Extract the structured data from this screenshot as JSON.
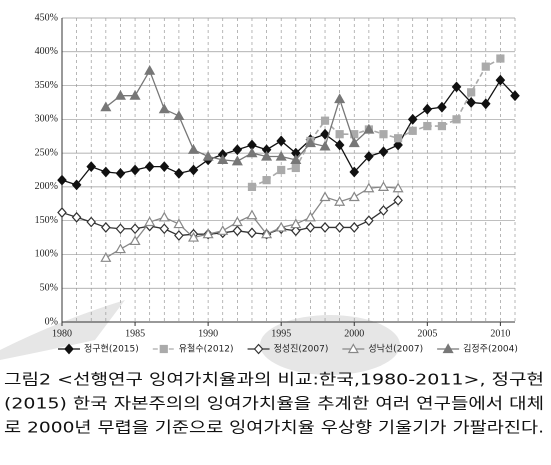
{
  "chart_data": {
    "type": "line",
    "x": [
      1980,
      1981,
      1982,
      1983,
      1984,
      1985,
      1986,
      1987,
      1988,
      1989,
      1990,
      1991,
      1992,
      1993,
      1994,
      1995,
      1996,
      1997,
      1998,
      1999,
      2000,
      2001,
      2002,
      2003,
      2004,
      2005,
      2006,
      2007,
      2008,
      2009,
      2010,
      2011
    ],
    "xlim": [
      1980,
      2011
    ],
    "xticks": [
      1980,
      1985,
      1990,
      1995,
      2000,
      2005,
      2010
    ],
    "ylim": [
      0,
      450
    ],
    "yticks": [
      {
        "value": 0,
        "label": "0%"
      },
      {
        "value": 50,
        "label": "50%"
      },
      {
        "value": 100,
        "label": "100%"
      },
      {
        "value": 150,
        "label": "150%"
      },
      {
        "value": 200,
        "label": "200%"
      },
      {
        "value": 250,
        "label": "250%"
      },
      {
        "value": 300,
        "label": "300%"
      },
      {
        "value": 350,
        "label": "350%"
      },
      {
        "value": 400,
        "label": "400%"
      },
      {
        "value": 450,
        "label": "450%"
      }
    ],
    "grid": true,
    "legend": "bottom",
    "series": [
      {
        "name": "정구현(2015)",
        "color": "#111111",
        "marker": "diamond",
        "filled": true,
        "dashed": false,
        "values": [
          210,
          203,
          230,
          222,
          220,
          225,
          230,
          230,
          220,
          225,
          240,
          248,
          255,
          262,
          255,
          268,
          250,
          270,
          278,
          262,
          222,
          245,
          252,
          262,
          300,
          315,
          318,
          348,
          325,
          323,
          358,
          335
        ]
      },
      {
        "name": "유철수(2012)",
        "color": "#aaaaaa",
        "marker": "square",
        "filled": true,
        "dashed": true,
        "values": [
          null,
          null,
          null,
          null,
          null,
          null,
          null,
          null,
          null,
          null,
          null,
          null,
          null,
          200,
          210,
          225,
          228,
          268,
          298,
          278,
          278,
          285,
          278,
          272,
          283,
          290,
          290,
          300,
          340,
          378,
          390,
          null
        ]
      },
      {
        "name": "정성진(2007)",
        "color": "#333333",
        "marker": "diamond",
        "filled": false,
        "dashed": false,
        "values": [
          162,
          155,
          148,
          140,
          138,
          138,
          142,
          138,
          128,
          130,
          130,
          132,
          135,
          132,
          130,
          138,
          135,
          140,
          140,
          140,
          140,
          150,
          165,
          180,
          null,
          null,
          null,
          null,
          null,
          null,
          null,
          null
        ]
      },
      {
        "name": "성낙선(2007)",
        "color": "#888888",
        "marker": "triangle",
        "filled": false,
        "dashed": false,
        "values": [
          null,
          null,
          null,
          95,
          108,
          120,
          148,
          155,
          145,
          125,
          130,
          135,
          148,
          158,
          130,
          140,
          145,
          155,
          185,
          178,
          185,
          198,
          200,
          198,
          null,
          null,
          null,
          null,
          null,
          null,
          null,
          null
        ]
      },
      {
        "name": "김정주(2004)",
        "color": "#777777",
        "marker": "triangle",
        "filled": true,
        "dashed": false,
        "values": [
          null,
          null,
          null,
          318,
          335,
          335,
          372,
          315,
          305,
          255,
          245,
          240,
          238,
          250,
          245,
          245,
          240,
          265,
          260,
          330,
          265,
          285,
          null,
          null,
          null,
          null,
          null,
          null,
          null,
          null,
          null,
          null
        ]
      }
    ],
    "caption": [
      "그림2 <선행연구 잉여가치율과의 비교:한국,1980-2011>, 정구현",
      "(2015) 한국 자본주의의 잉여가치율을 추계한 여러 연구들에서 대체",
      "로 2000년 무렵을 기준으로 잉여가치율 우상향 기울기가 가팔라진다."
    ]
  }
}
